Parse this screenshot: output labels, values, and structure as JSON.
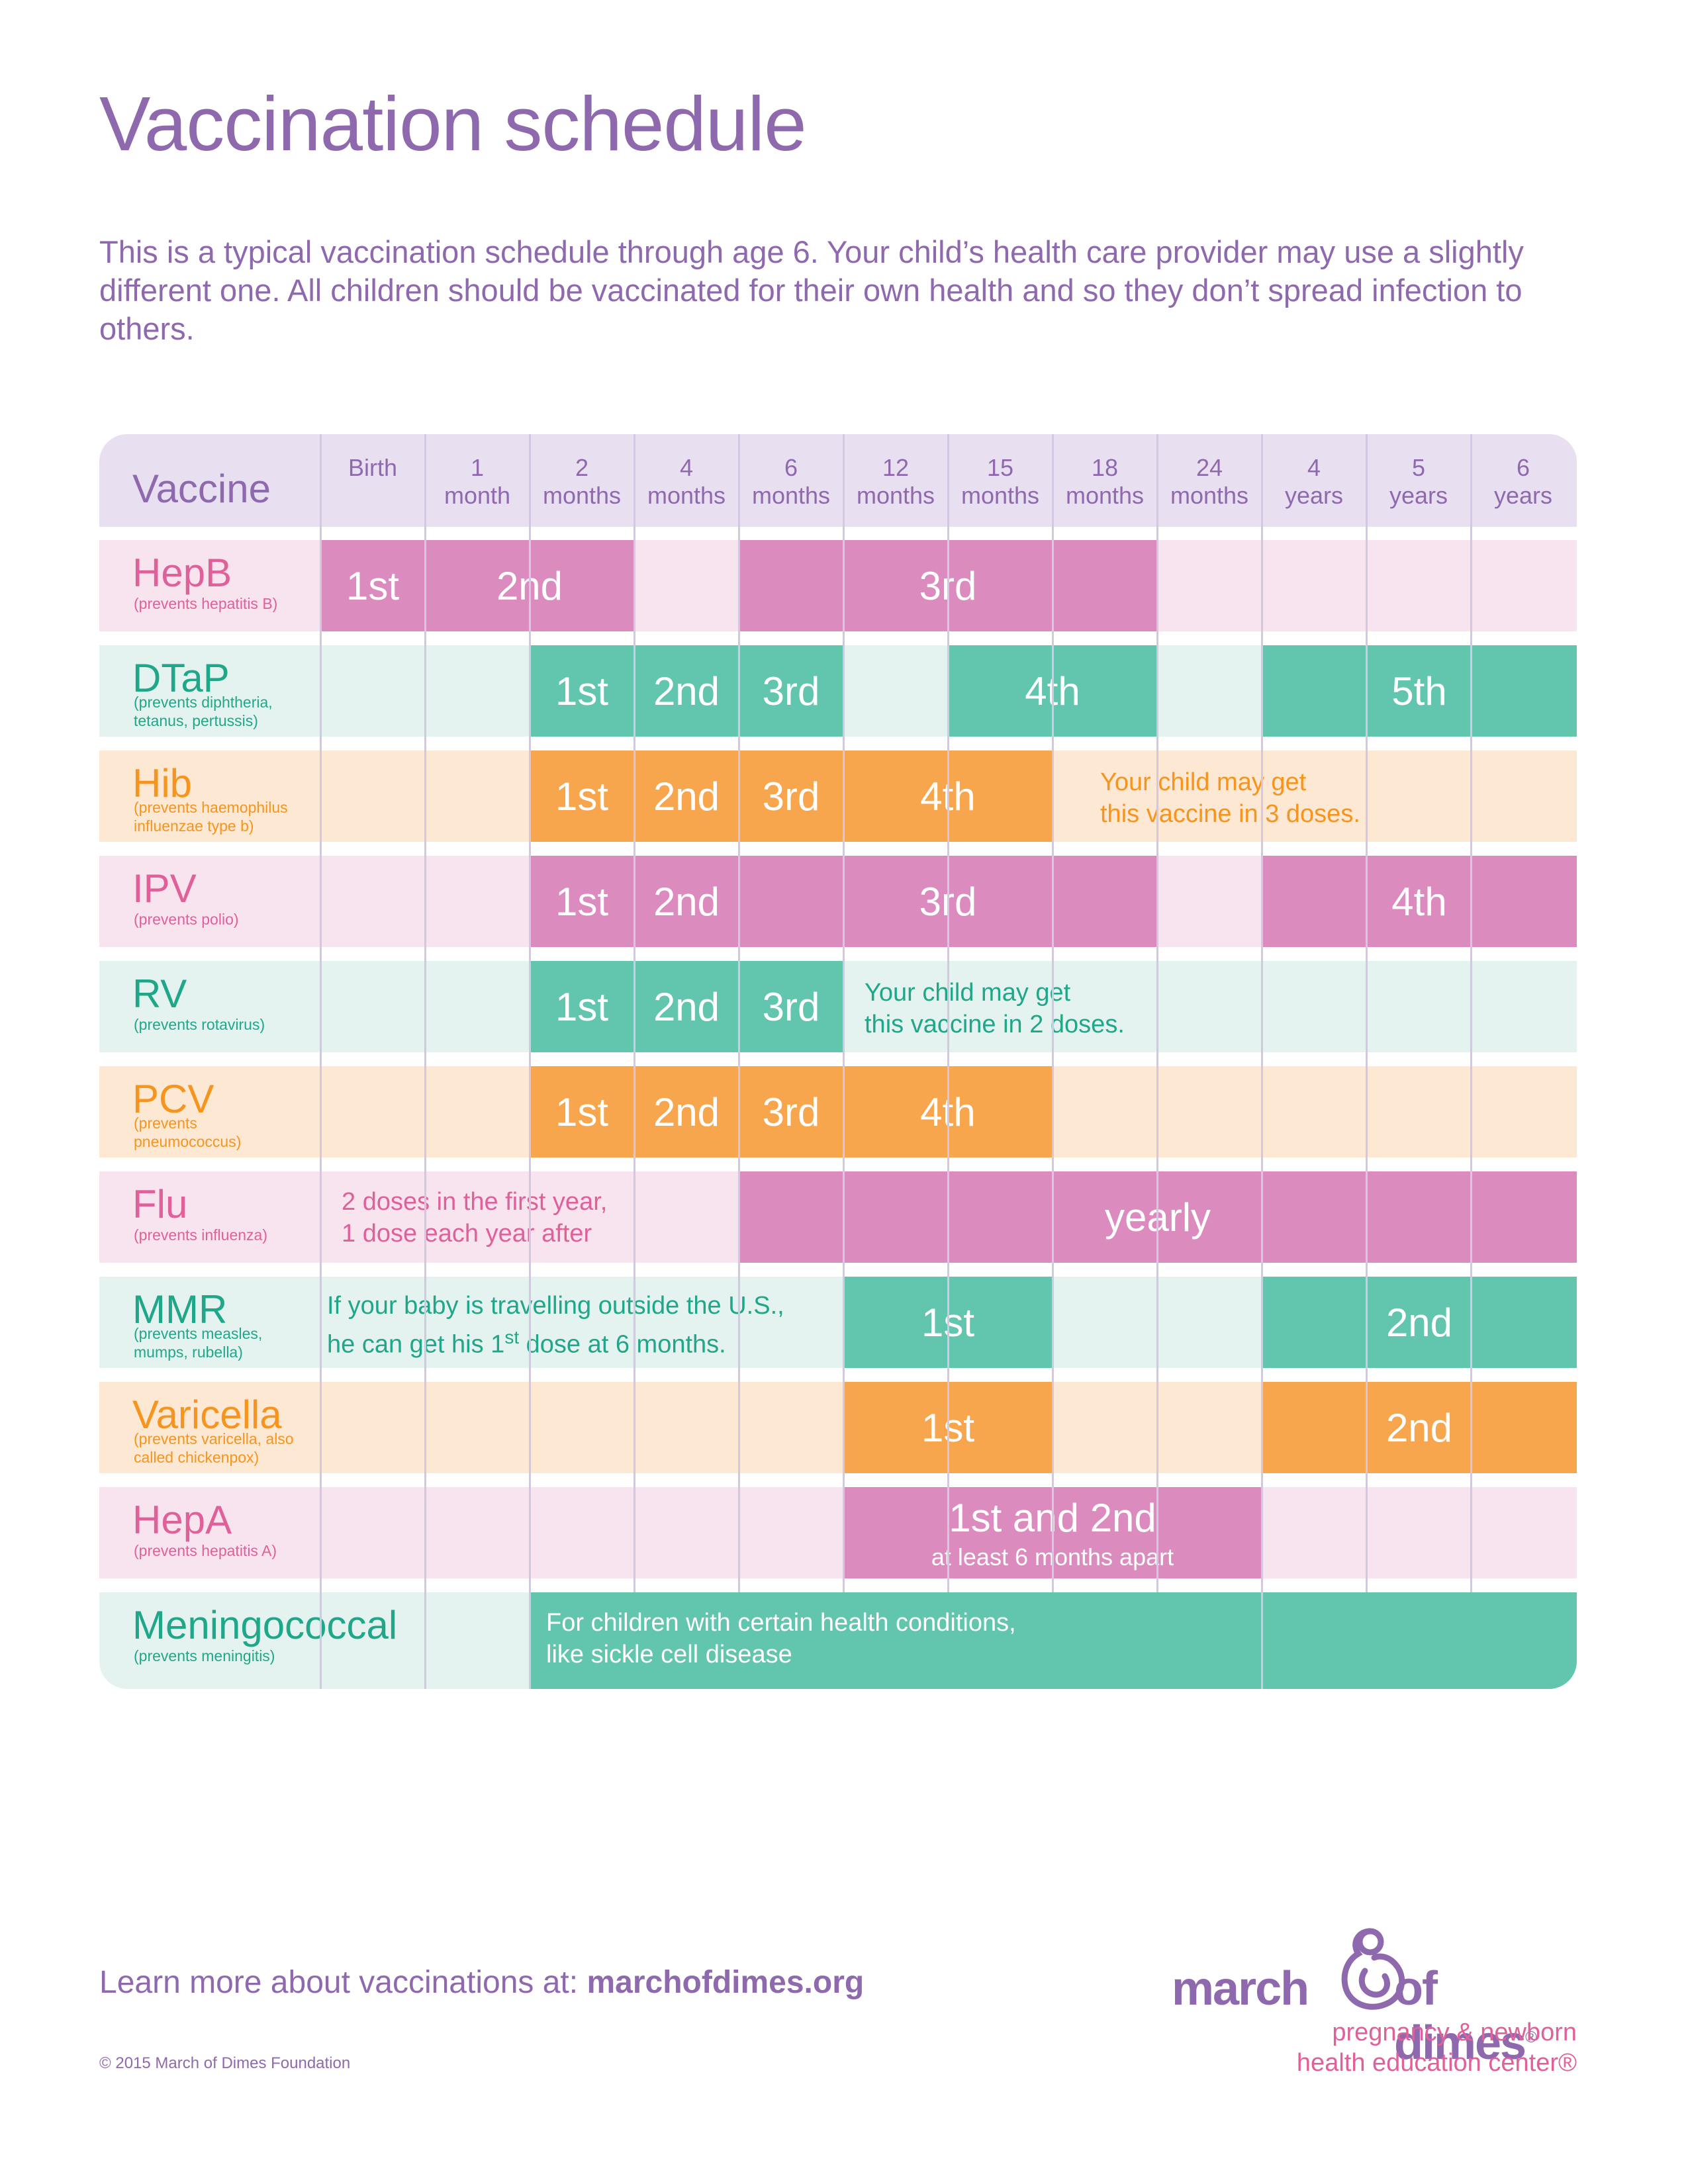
{
  "title": "Vaccination schedule",
  "intro": "This is a typical vaccination schedule through age 6. Your child’s health care provider may use a slightly different one. All children should be vaccinated for their own health and so they don’t spread infection to others.",
  "table": {
    "vaccine_header": "Vaccine",
    "columns": [
      {
        "line1": "",
        "line2": "Birth"
      },
      {
        "line1": "1",
        "line2": "month"
      },
      {
        "line1": "2",
        "line2": "months"
      },
      {
        "line1": "4",
        "line2": "months"
      },
      {
        "line1": "6",
        "line2": "months"
      },
      {
        "line1": "12",
        "line2": "months"
      },
      {
        "line1": "15",
        "line2": "months"
      },
      {
        "line1": "18",
        "line2": "months"
      },
      {
        "line1": "24",
        "line2": "months"
      },
      {
        "line1": "4",
        "line2": "years"
      },
      {
        "line1": "5",
        "line2": "years"
      },
      {
        "line1": "6",
        "line2": "years"
      }
    ],
    "rows": [
      {
        "name": "HepB",
        "sub": "(prevents hepatitis B)",
        "doses": [
          "1st",
          "2nd",
          "3rd"
        ]
      },
      {
        "name": "DTaP",
        "sub": "(prevents diphtheria, tetanus, pertussis)",
        "sub_line1": "(prevents diphtheria,",
        "sub_line2": "tetanus, pertussis)",
        "doses": [
          "1st",
          "2nd",
          "3rd",
          "4th",
          "5th"
        ]
      },
      {
        "name": "Hib",
        "sub_line1": "(prevents haemophilus",
        "sub_line2": "influenzae type b)",
        "doses": [
          "1st",
          "2nd",
          "3rd",
          "4th"
        ],
        "note_line1": "Your child may get",
        "note_line2": "this vaccine in 3 doses."
      },
      {
        "name": "IPV",
        "sub": "(prevents polio)",
        "doses": [
          "1st",
          "2nd",
          "3rd",
          "4th"
        ]
      },
      {
        "name": "RV",
        "sub": "(prevents rotavirus)",
        "doses": [
          "1st",
          "2nd",
          "3rd"
        ],
        "note_line1": "Your child may get",
        "note_line2": "this vaccine in 2 doses."
      },
      {
        "name": "PCV",
        "sub_line1": "(prevents",
        "sub_line2": "pneumococcus)",
        "doses": [
          "1st",
          "2nd",
          "3rd",
          "4th"
        ]
      },
      {
        "name": "Flu",
        "sub": "(prevents influenza)",
        "note_line1": "2 doses in the first year,",
        "note_line2": "1 dose each year after",
        "doses": [
          "yearly"
        ]
      },
      {
        "name": "MMR",
        "sub_line1": "(prevents measles,",
        "sub_line2": "mumps, rubella)",
        "note_line1": "If your baby is travelling outside the U.S.,",
        "note_line2_a": "he can get his 1",
        "note_line2_sup": "st",
        "note_line2_b": " dose at 6 months.",
        "doses": [
          "1st",
          "2nd"
        ]
      },
      {
        "name": "Varicella",
        "sub_line1": "(prevents varicella, also",
        "sub_line2": "called chickenpox)",
        "doses": [
          "1st",
          "2nd"
        ]
      },
      {
        "name": "HepA",
        "sub": "(prevents hepatitis A)",
        "dose_main": "1st and 2nd",
        "dose_small": "at least 6 months apart"
      },
      {
        "name": "Meningococcal",
        "sub": "(prevents meningitis)",
        "note_line1": "For children with certain health conditions,",
        "note_line2": "like sickle cell disease"
      }
    ]
  },
  "footer": {
    "learn_text": "Learn more about vaccinations at: ",
    "learn_link": "marchofdimes.org",
    "copyright": "© 2015 March of Dimes Foundation"
  },
  "logo": {
    "word_left": "march",
    "word_right": "of dimes",
    "reg": "®",
    "tag_line1": "pregnancy & newborn",
    "tag_line2": "health education center®"
  },
  "colors": {
    "purple": "#8f69ad",
    "pink": "#e0609a",
    "pink_dose": "#dc8bbf",
    "pink_bg": "#f7e4ef",
    "teal": "#20a789",
    "teal_dose": "#62c5ad",
    "teal_bg": "#e4f3ef",
    "orange": "#f7941d",
    "orange_dose": "#f7a64d",
    "orange_bg": "#fde8d3",
    "header_bg": "#e8e0f0"
  }
}
